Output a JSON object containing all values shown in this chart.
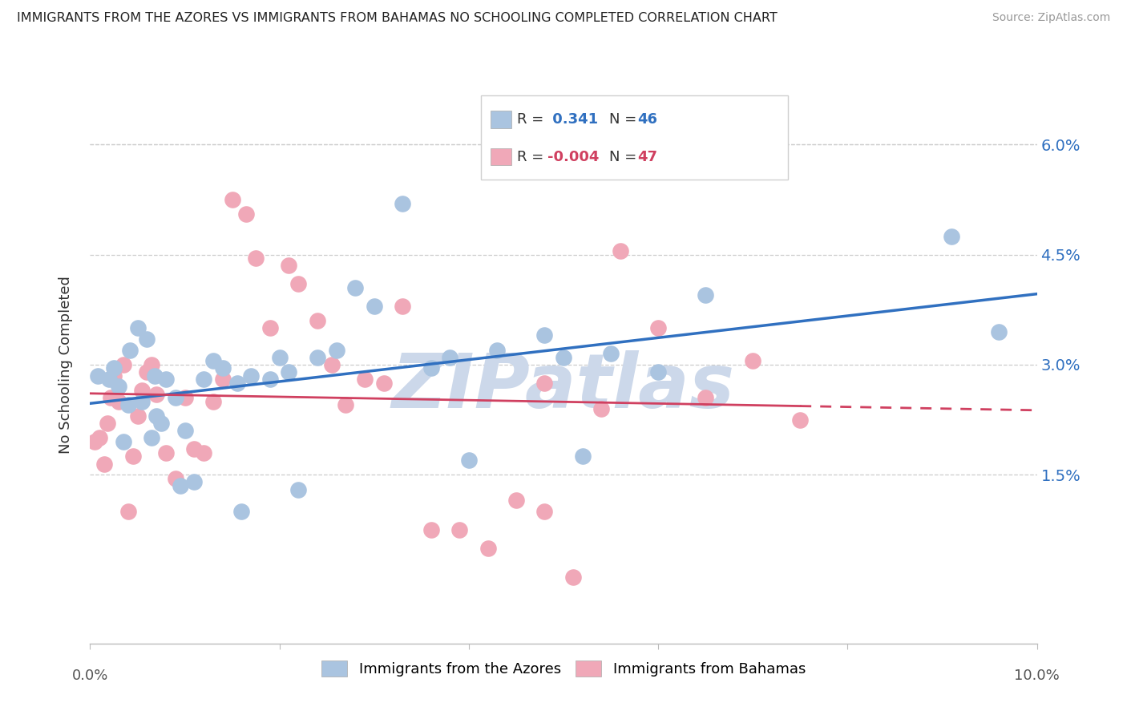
{
  "title": "IMMIGRANTS FROM THE AZORES VS IMMIGRANTS FROM BAHAMAS NO SCHOOLING COMPLETED CORRELATION CHART",
  "source": "Source: ZipAtlas.com",
  "ylabel": "No Schooling Completed",
  "ytick_labels": [
    "6.0%",
    "4.5%",
    "3.0%",
    "1.5%"
  ],
  "ytick_values": [
    0.06,
    0.045,
    0.03,
    0.015
  ],
  "xmin": 0.0,
  "xmax": 0.1,
  "ymin": -0.008,
  "ymax": 0.068,
  "R_blue": 0.341,
  "N_blue": 46,
  "R_pink": -0.004,
  "N_pink": 47,
  "legend_label_blue": "Immigrants from the Azores",
  "legend_label_pink": "Immigrants from Bahamas",
  "color_blue": "#aac4e0",
  "color_pink": "#f0a8b8",
  "line_color_blue": "#3070c0",
  "line_color_pink": "#d04060",
  "watermark_color": "#ccd8ea",
  "blue_x": [
    0.0008,
    0.002,
    0.0025,
    0.003,
    0.0035,
    0.004,
    0.0042,
    0.005,
    0.0055,
    0.006,
    0.0065,
    0.0068,
    0.007,
    0.0075,
    0.008,
    0.009,
    0.0095,
    0.01,
    0.011,
    0.012,
    0.013,
    0.014,
    0.0155,
    0.016,
    0.017,
    0.019,
    0.02,
    0.021,
    0.022,
    0.024,
    0.026,
    0.028,
    0.03,
    0.033,
    0.036,
    0.038,
    0.04,
    0.043,
    0.048,
    0.05,
    0.052,
    0.055,
    0.06,
    0.065,
    0.091,
    0.096
  ],
  "blue_y": [
    0.0285,
    0.028,
    0.0295,
    0.027,
    0.0195,
    0.0245,
    0.032,
    0.035,
    0.025,
    0.0335,
    0.02,
    0.0285,
    0.023,
    0.022,
    0.028,
    0.0255,
    0.0135,
    0.021,
    0.014,
    0.028,
    0.0305,
    0.0295,
    0.0275,
    0.01,
    0.0285,
    0.028,
    0.031,
    0.029,
    0.013,
    0.031,
    0.032,
    0.0405,
    0.038,
    0.052,
    0.0295,
    0.031,
    0.017,
    0.032,
    0.034,
    0.031,
    0.0175,
    0.0315,
    0.029,
    0.0395,
    0.0475,
    0.0345
  ],
  "pink_x": [
    0.0005,
    0.001,
    0.0015,
    0.0018,
    0.0022,
    0.0025,
    0.003,
    0.0035,
    0.004,
    0.0045,
    0.005,
    0.0055,
    0.006,
    0.0065,
    0.007,
    0.008,
    0.009,
    0.01,
    0.011,
    0.012,
    0.013,
    0.014,
    0.015,
    0.0165,
    0.0175,
    0.019,
    0.021,
    0.022,
    0.024,
    0.0255,
    0.027,
    0.029,
    0.031,
    0.033,
    0.036,
    0.039,
    0.042,
    0.045,
    0.048,
    0.051,
    0.054,
    0.056,
    0.06,
    0.065,
    0.07,
    0.075,
    0.048
  ],
  "pink_y": [
    0.0195,
    0.02,
    0.0165,
    0.022,
    0.0255,
    0.0285,
    0.025,
    0.03,
    0.01,
    0.0175,
    0.023,
    0.0265,
    0.029,
    0.03,
    0.026,
    0.018,
    0.0145,
    0.0255,
    0.0185,
    0.018,
    0.025,
    0.028,
    0.0525,
    0.0505,
    0.0445,
    0.035,
    0.0435,
    0.041,
    0.036,
    0.03,
    0.0245,
    0.028,
    0.0275,
    0.038,
    0.0075,
    0.0075,
    0.005,
    0.0115,
    0.01,
    0.001,
    0.024,
    0.0455,
    0.035,
    0.0255,
    0.0305,
    0.0225,
    0.0275
  ]
}
